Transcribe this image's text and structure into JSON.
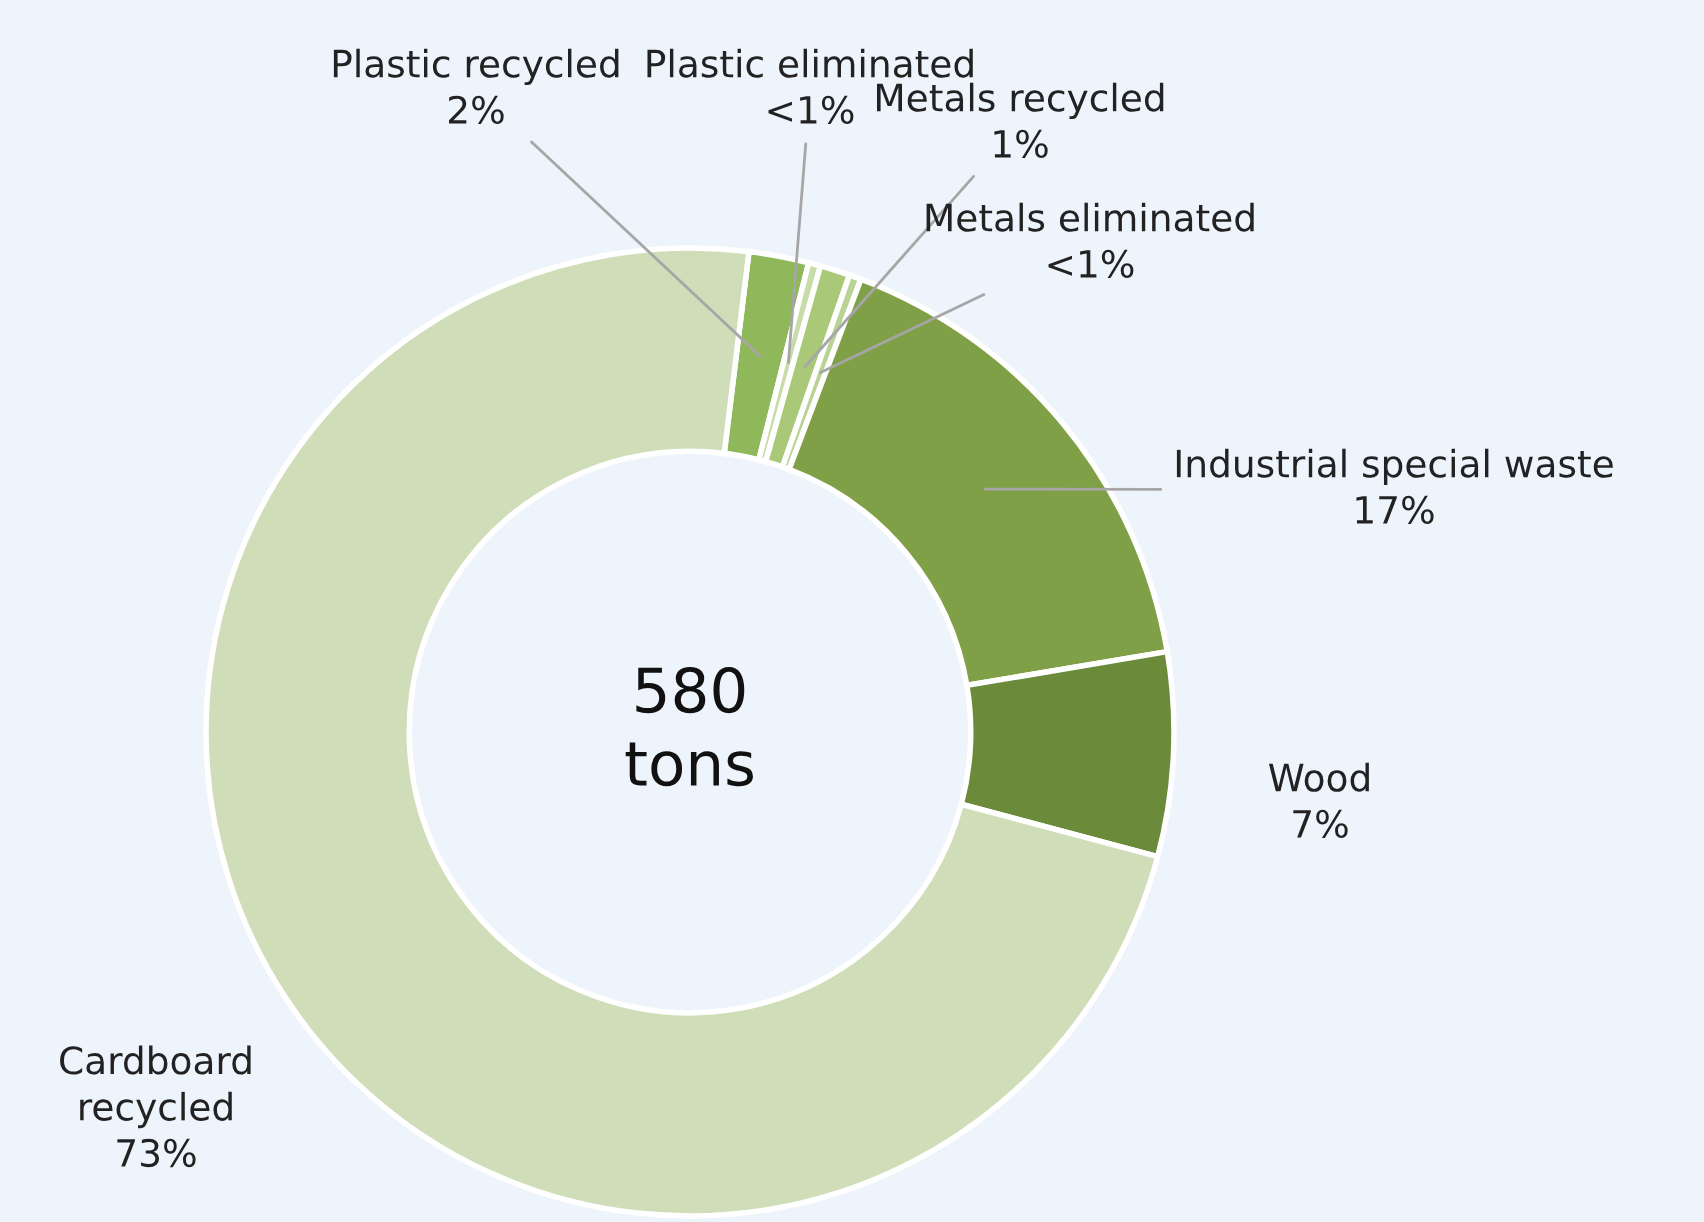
{
  "chart_data": {
    "type": "donut",
    "categories": [
      "Plastic recycled",
      "Plastic eliminated",
      "Metals recycled",
      "Metals eliminated",
      "Industrial special waste",
      "Wood",
      "Cardboard recycled"
    ],
    "values": [
      2,
      0.4,
      1,
      0.4,
      16.6,
      6.8,
      72.8
    ],
    "value_labels": [
      "2%",
      "<1%",
      "1%",
      "<1%",
      "17%",
      "7%",
      "73%"
    ],
    "colors": [
      "#8fb85a",
      "#c8dcaa",
      "#a9c878",
      "#b9d394",
      "#80a048",
      "#6b8a3a",
      "#d0ddb9"
    ],
    "annotations": [
      "580\ntons"
    ],
    "legend": false
  }
}
